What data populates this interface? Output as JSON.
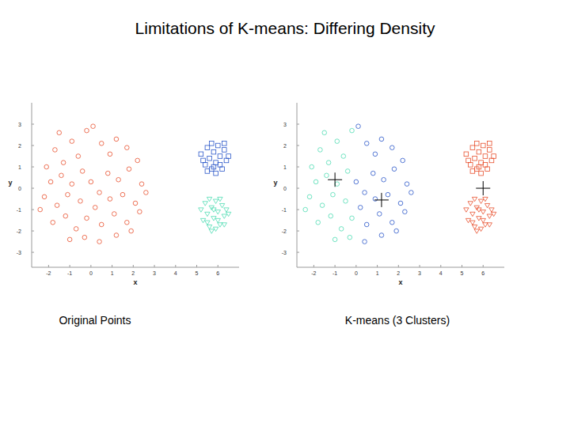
{
  "title": "Limitations of K-means: Differing Density",
  "chart_data": [
    {
      "type": "scatter",
      "title": "Original Points",
      "x_label": "x",
      "y_label": "y",
      "xlim": [
        -2.8,
        7
      ],
      "ylim": [
        -3.7,
        4
      ],
      "xticks": [
        -2,
        -1,
        0,
        1,
        2,
        3,
        4,
        5,
        6
      ],
      "yticks": [
        -3,
        -2,
        -1,
        0,
        1,
        2,
        3
      ],
      "series": [
        {
          "color": "#e8502e",
          "marker": "circle",
          "x": [
            -2.1,
            -1.7,
            -1.3,
            -0.9,
            -0.6,
            -0.2,
            0.1,
            0.5,
            0.9,
            1.2,
            1.7,
            2.2,
            -1.9,
            -1.4,
            -0.9,
            -0.4,
            0.0,
            0.4,
            0.8,
            1.3,
            1.8,
            2.4,
            -2.2,
            -1.6,
            -1.1,
            -0.5,
            0.2,
            0.9,
            1.5,
            2.1,
            -1.8,
            -1.2,
            -0.7,
            -0.2,
            0.5,
            1.1,
            1.7,
            2.3,
            -1.0,
            -0.3,
            0.4,
            1.2,
            -1.5,
            1.9,
            -2.4,
            2.6
          ],
          "values": [
            1.0,
            1.8,
            1.2,
            2.2,
            1.5,
            2.7,
            2.9,
            2.1,
            1.6,
            2.3,
            1.9,
            1.3,
            0.3,
            0.6,
            0.2,
            0.8,
            0.3,
            -0.2,
            0.7,
            0.4,
            0.9,
            0.2,
            -0.4,
            -0.8,
            -0.3,
            -0.6,
            -0.9,
            -0.5,
            -0.3,
            -0.7,
            -1.6,
            -1.3,
            -1.9,
            -1.4,
            -1.7,
            -1.2,
            -1.6,
            -1.1,
            -2.4,
            -2.3,
            -2.5,
            -2.2,
            2.6,
            -2.0,
            -1.0,
            -0.2
          ]
        },
        {
          "color": "#2b57c9",
          "marker": "square",
          "x": [
            5.2,
            5.4,
            5.5,
            5.6,
            5.7,
            5.8,
            5.9,
            6.0,
            6.1,
            6.2,
            6.3,
            6.4,
            5.3,
            5.5,
            5.7,
            5.9,
            6.1,
            6.3,
            6.5,
            5.8
          ],
          "values": [
            1.6,
            1.1,
            1.9,
            1.4,
            0.9,
            1.7,
            1.2,
            2.0,
            1.5,
            0.9,
            1.8,
            1.3,
            1.3,
            0.8,
            2.1,
            0.7,
            1.1,
            2.1,
            1.5,
            1.0
          ]
        },
        {
          "color": "#4fdcb2",
          "marker": "triangle",
          "x": [
            5.2,
            5.3,
            5.4,
            5.5,
            5.6,
            5.7,
            5.8,
            5.9,
            6.0,
            6.1,
            6.2,
            6.3,
            6.4,
            5.5,
            5.7,
            5.9,
            6.1,
            6.3,
            6.5,
            5.8,
            6.0,
            5.6
          ],
          "values": [
            -1.0,
            -1.5,
            -0.7,
            -1.2,
            -1.8,
            -0.9,
            -1.4,
            -0.6,
            -1.1,
            -1.7,
            -0.8,
            -1.3,
            -1.0,
            -1.6,
            -2.0,
            -1.9,
            -0.5,
            -1.7,
            -1.2,
            -1.0,
            -1.5,
            -0.5
          ]
        }
      ]
    },
    {
      "type": "scatter",
      "title": "K-means (3 Clusters)",
      "x_label": "x",
      "y_label": "y",
      "xlim": [
        -2.8,
        7
      ],
      "ylim": [
        -3.7,
        4
      ],
      "xticks": [
        -2,
        -1,
        0,
        1,
        2,
        3,
        4,
        5,
        6
      ],
      "yticks": [
        -3,
        -2,
        -1,
        0,
        1,
        2,
        3
      ],
      "series": [
        {
          "color": "#4fdcb2",
          "marker": "circle",
          "x": [
            -2.1,
            -1.7,
            -1.3,
            -0.9,
            -0.6,
            -0.2,
            -1.9,
            -1.4,
            -0.9,
            -0.4,
            -2.2,
            -1.6,
            -1.1,
            -0.5,
            -1.8,
            -1.2,
            -0.7,
            -0.2,
            -1.0,
            -0.3,
            -1.5,
            -2.4
          ],
          "values": [
            1.0,
            1.8,
            1.2,
            2.2,
            1.5,
            2.7,
            0.3,
            0.6,
            0.2,
            0.8,
            -0.4,
            -0.8,
            -0.3,
            -0.6,
            -1.6,
            -1.3,
            -1.9,
            -1.4,
            -2.4,
            -2.3,
            2.6,
            -1.0
          ]
        },
        {
          "color": "#2b57c9",
          "marker": "circle",
          "x": [
            0.1,
            0.5,
            0.9,
            1.2,
            1.7,
            2.2,
            0.0,
            0.4,
            0.8,
            1.3,
            1.8,
            2.4,
            0.2,
            0.9,
            1.5,
            2.1,
            0.5,
            1.1,
            1.7,
            2.3,
            0.4,
            1.2,
            1.9,
            2.6
          ],
          "values": [
            2.9,
            2.1,
            1.6,
            2.3,
            1.9,
            1.3,
            0.3,
            -0.2,
            0.7,
            0.4,
            0.9,
            0.2,
            -0.9,
            -0.5,
            -0.3,
            -0.7,
            -1.7,
            -1.2,
            -1.6,
            -1.1,
            -2.5,
            -2.2,
            -2.0,
            -0.2
          ]
        },
        {
          "color": "#e8502e",
          "marker": "square",
          "x": [
            5.2,
            5.4,
            5.5,
            5.6,
            5.7,
            5.8,
            5.9,
            6.0,
            6.1,
            6.2,
            6.3,
            6.4,
            5.3,
            5.5,
            5.7,
            5.9,
            6.1,
            6.3,
            6.5,
            5.8
          ],
          "values": [
            1.6,
            1.1,
            1.9,
            1.4,
            0.9,
            1.7,
            1.2,
            2.0,
            1.5,
            0.9,
            1.8,
            1.3,
            1.3,
            0.8,
            2.1,
            0.7,
            1.1,
            2.1,
            1.5,
            1.0
          ]
        },
        {
          "color": "#e8502e",
          "marker": "triangle",
          "x": [
            5.2,
            5.3,
            5.4,
            5.5,
            5.6,
            5.7,
            5.8,
            5.9,
            6.0,
            6.1,
            6.2,
            6.3,
            6.4,
            5.5,
            5.7,
            5.9,
            6.1,
            6.3,
            6.5,
            5.8,
            6.0,
            5.6
          ],
          "values": [
            -1.0,
            -1.5,
            -0.7,
            -1.2,
            -1.8,
            -0.9,
            -1.4,
            -0.6,
            -1.1,
            -1.7,
            -0.8,
            -1.3,
            -1.0,
            -1.6,
            -2.0,
            -1.9,
            -0.5,
            -1.7,
            -1.2,
            -1.0,
            -1.5,
            -0.5
          ]
        },
        {
          "color": "#000000",
          "marker": "plus",
          "x": [
            -1.0,
            1.2,
            6.0
          ],
          "values": [
            0.4,
            -0.55,
            0.0
          ]
        }
      ]
    }
  ]
}
